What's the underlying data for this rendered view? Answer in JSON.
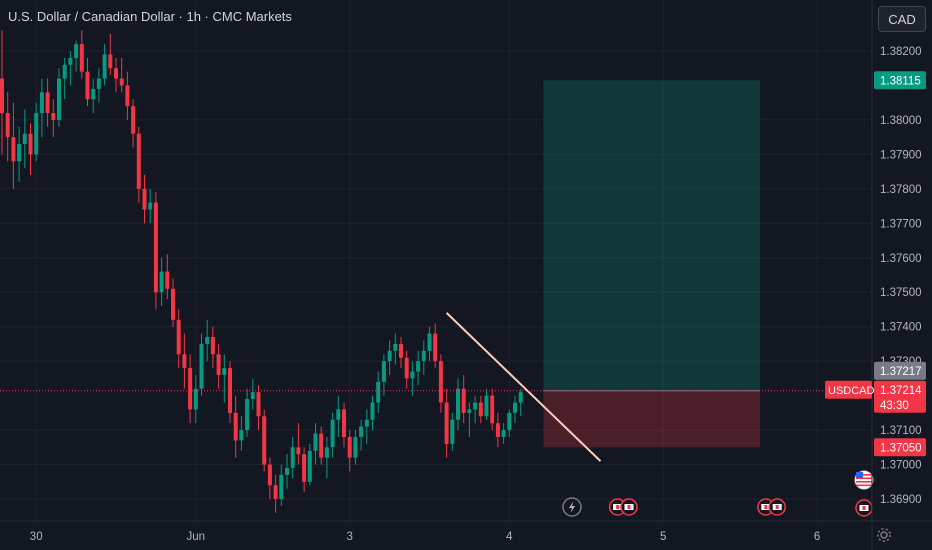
{
  "header": {
    "title": "U.S. Dollar / Canadian Dollar · 1h · CMC Markets",
    "currency_button": "CAD"
  },
  "price_axis": {
    "ticks": [
      "1.38200",
      "1.38000",
      "1.37900",
      "1.37800",
      "1.37700",
      "1.37600",
      "1.37500",
      "1.37400",
      "1.37300",
      "1.37100",
      "1.37000",
      "1.36900"
    ]
  },
  "price_tags": {
    "target": {
      "label": "1.38115",
      "value": 1.38115,
      "color": "#089981"
    },
    "last": {
      "label": "1.37217",
      "value": 1.37217,
      "color": "#787b86"
    },
    "current": {
      "symbol": "USDCAD",
      "label": "1.37214",
      "countdown": "43:30",
      "value": 1.37214,
      "color": "#f23645"
    },
    "stop": {
      "label": "1.37050",
      "value": 1.3705,
      "color": "#f23645"
    }
  },
  "time_axis": {
    "labels": [
      {
        "text": "30",
        "index": 6
      },
      {
        "text": "Jun",
        "index": 34
      },
      {
        "text": "3",
        "index": 61
      },
      {
        "text": "4",
        "index": 89
      },
      {
        "text": "5",
        "index": 116
      },
      {
        "text": "6",
        "index": 143
      }
    ]
  },
  "events": [
    {
      "type": "lightning-icon",
      "index": 100
    },
    {
      "type": "ca-flag-icon",
      "index": 108
    },
    {
      "type": "ca-flag-icon",
      "index": 110
    },
    {
      "type": "ca-flag-icon",
      "index": 134
    },
    {
      "type": "ca-flag-icon",
      "index": 136
    }
  ],
  "chart_data": {
    "type": "candlestick",
    "symbol": "USDCAD",
    "ylim": [
      1.3685,
      1.383
    ],
    "candles_ohlc": [
      [
        1.3812,
        1.3826,
        1.379,
        1.3802
      ],
      [
        1.3802,
        1.3808,
        1.3788,
        1.3795
      ],
      [
        1.3795,
        1.3805,
        1.378,
        1.3788
      ],
      [
        1.3788,
        1.3798,
        1.3782,
        1.3793
      ],
      [
        1.3793,
        1.3803,
        1.3786,
        1.3796
      ],
      [
        1.3796,
        1.3799,
        1.3784,
        1.379
      ],
      [
        1.379,
        1.3805,
        1.3788,
        1.3802
      ],
      [
        1.3802,
        1.3812,
        1.3795,
        1.3808
      ],
      [
        1.3808,
        1.3812,
        1.3798,
        1.3802
      ],
      [
        1.3802,
        1.3806,
        1.3795,
        1.38
      ],
      [
        1.38,
        1.3815,
        1.3798,
        1.3812
      ],
      [
        1.3812,
        1.3818,
        1.3806,
        1.3816
      ],
      [
        1.3816,
        1.382,
        1.381,
        1.3818
      ],
      [
        1.3818,
        1.3823,
        1.3814,
        1.3822
      ],
      [
        1.3822,
        1.3826,
        1.3812,
        1.3814
      ],
      [
        1.3814,
        1.3818,
        1.3804,
        1.3806
      ],
      [
        1.3806,
        1.3812,
        1.3802,
        1.3809
      ],
      [
        1.3809,
        1.3815,
        1.3805,
        1.3812
      ],
      [
        1.3812,
        1.3822,
        1.381,
        1.3819
      ],
      [
        1.3819,
        1.3825,
        1.3813,
        1.3815
      ],
      [
        1.3815,
        1.3818,
        1.3808,
        1.3812
      ],
      [
        1.3812,
        1.3818,
        1.3808,
        1.381
      ],
      [
        1.381,
        1.3814,
        1.38,
        1.3804
      ],
      [
        1.3804,
        1.3806,
        1.3792,
        1.3796
      ],
      [
        1.3796,
        1.3798,
        1.3776,
        1.378
      ],
      [
        1.378,
        1.3784,
        1.377,
        1.3774
      ],
      [
        1.3774,
        1.378,
        1.377,
        1.3776
      ],
      [
        1.3776,
        1.3779,
        1.3745,
        1.375
      ],
      [
        1.375,
        1.376,
        1.3746,
        1.3756
      ],
      [
        1.3756,
        1.3761,
        1.3748,
        1.3751
      ],
      [
        1.3751,
        1.3754,
        1.374,
        1.3742
      ],
      [
        1.3742,
        1.3745,
        1.3728,
        1.3732
      ],
      [
        1.3732,
        1.3738,
        1.3722,
        1.3728
      ],
      [
        1.3728,
        1.3732,
        1.3712,
        1.3716
      ],
      [
        1.3716,
        1.3726,
        1.3712,
        1.3722
      ],
      [
        1.3722,
        1.3738,
        1.372,
        1.3735
      ],
      [
        1.3735,
        1.3742,
        1.373,
        1.3737
      ],
      [
        1.3737,
        1.374,
        1.3728,
        1.3732
      ],
      [
        1.3732,
        1.3735,
        1.3722,
        1.3726
      ],
      [
        1.3726,
        1.3732,
        1.3718,
        1.3728
      ],
      [
        1.3728,
        1.373,
        1.3712,
        1.3715
      ],
      [
        1.3715,
        1.372,
        1.3702,
        1.3707
      ],
      [
        1.3707,
        1.3714,
        1.3704,
        1.371
      ],
      [
        1.371,
        1.3722,
        1.3708,
        1.3719
      ],
      [
        1.3719,
        1.3725,
        1.3716,
        1.3721
      ],
      [
        1.3721,
        1.3723,
        1.371,
        1.3714
      ],
      [
        1.3714,
        1.3716,
        1.3698,
        1.37
      ],
      [
        1.37,
        1.3702,
        1.369,
        1.3694
      ],
      [
        1.3694,
        1.3697,
        1.3686,
        1.369
      ],
      [
        1.369,
        1.37,
        1.3688,
        1.3697
      ],
      [
        1.3697,
        1.3703,
        1.3693,
        1.3699
      ],
      [
        1.3699,
        1.3708,
        1.3696,
        1.3705
      ],
      [
        1.3705,
        1.3712,
        1.37,
        1.3703
      ],
      [
        1.3703,
        1.3705,
        1.3692,
        1.3695
      ],
      [
        1.3695,
        1.3706,
        1.3694,
        1.3704
      ],
      [
        1.3704,
        1.3712,
        1.37,
        1.3709
      ],
      [
        1.3709,
        1.3711,
        1.37,
        1.3702
      ],
      [
        1.3702,
        1.3708,
        1.3696,
        1.3705
      ],
      [
        1.3705,
        1.3715,
        1.3702,
        1.3713
      ],
      [
        1.3713,
        1.372,
        1.3708,
        1.3716
      ],
      [
        1.3716,
        1.3718,
        1.3705,
        1.3708
      ],
      [
        1.3708,
        1.371,
        1.3698,
        1.3702
      ],
      [
        1.3702,
        1.371,
        1.37,
        1.3708
      ],
      [
        1.3708,
        1.3713,
        1.3704,
        1.3711
      ],
      [
        1.3711,
        1.3716,
        1.3706,
        1.3713
      ],
      [
        1.3713,
        1.372,
        1.371,
        1.3718
      ],
      [
        1.3718,
        1.3727,
        1.3715,
        1.3724
      ],
      [
        1.3724,
        1.3732,
        1.372,
        1.373
      ],
      [
        1.373,
        1.3736,
        1.3726,
        1.3733
      ],
      [
        1.3733,
        1.3738,
        1.3729,
        1.3735
      ],
      [
        1.3735,
        1.3737,
        1.3728,
        1.3731
      ],
      [
        1.3731,
        1.3733,
        1.3722,
        1.3725
      ],
      [
        1.3725,
        1.373,
        1.372,
        1.3727
      ],
      [
        1.3727,
        1.3733,
        1.3723,
        1.373
      ],
      [
        1.373,
        1.3736,
        1.3726,
        1.3733
      ],
      [
        1.3733,
        1.374,
        1.373,
        1.3738
      ],
      [
        1.3738,
        1.3741,
        1.3728,
        1.373
      ],
      [
        1.373,
        1.3732,
        1.3715,
        1.3718
      ],
      [
        1.3718,
        1.3722,
        1.3702,
        1.3706
      ],
      [
        1.3706,
        1.3715,
        1.3704,
        1.3713
      ],
      [
        1.3713,
        1.3725,
        1.371,
        1.3722
      ],
      [
        1.3722,
        1.3726,
        1.3712,
        1.3715
      ],
      [
        1.3715,
        1.3718,
        1.3708,
        1.3716
      ],
      [
        1.3716,
        1.372,
        1.3712,
        1.3718
      ],
      [
        1.3718,
        1.372,
        1.3712,
        1.3714
      ],
      [
        1.3714,
        1.3722,
        1.3713,
        1.372
      ],
      [
        1.372,
        1.3722,
        1.371,
        1.3712
      ],
      [
        1.3712,
        1.3715,
        1.3705,
        1.3708
      ],
      [
        1.3708,
        1.3712,
        1.3706,
        1.371
      ],
      [
        1.371,
        1.3716,
        1.3708,
        1.3715
      ],
      [
        1.3715,
        1.372,
        1.3712,
        1.3718
      ],
      [
        1.3718,
        1.3722,
        1.3714,
        1.3721
      ]
    ]
  },
  "position_tool": {
    "entry": 1.37214,
    "target": 1.38115,
    "stop": 1.3705,
    "start_index": 95,
    "end_index": 133
  },
  "trendline": {
    "start": {
      "index": 78,
      "price": 1.3744
    },
    "end": {
      "index": 105,
      "price": 1.3701
    }
  }
}
